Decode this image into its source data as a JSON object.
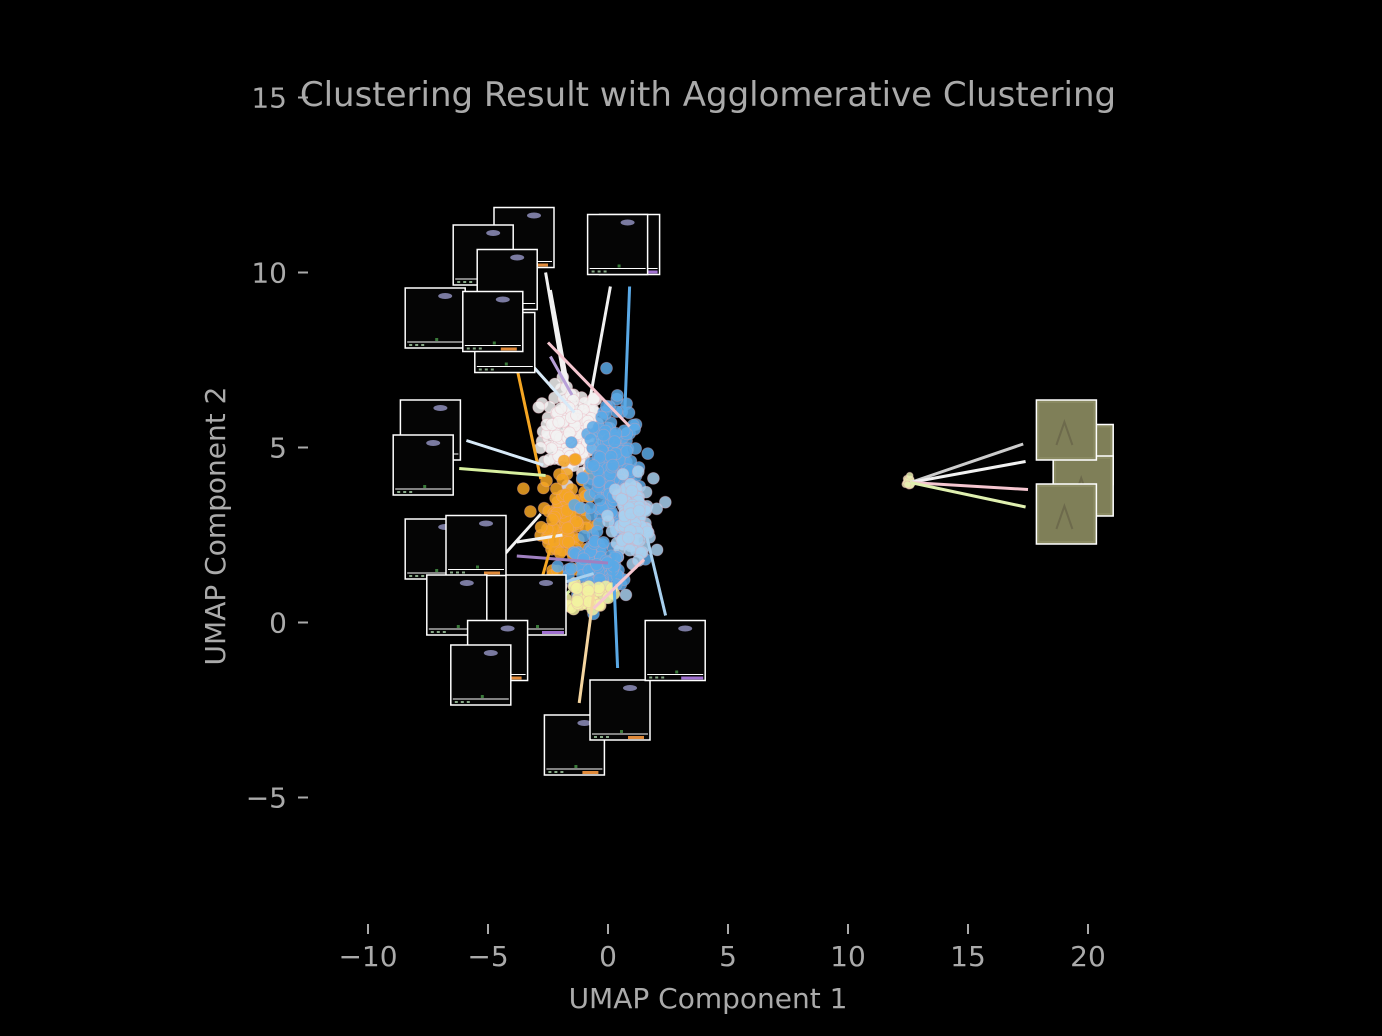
{
  "chart_data": {
    "type": "scatter",
    "title": "Clustering Result with Agglomerative Clustering",
    "xlabel": "UMAP Component 1",
    "ylabel": "UMAP Component 2",
    "xlim": [
      -12,
      20.5
    ],
    "ylim": [
      -8.5,
      15.5
    ],
    "xticks": [
      -10,
      -5,
      0,
      5,
      10,
      15,
      20
    ],
    "xtick_labels": [
      "−10",
      "−5",
      "0",
      "5",
      "10",
      "15",
      "20"
    ],
    "yticks": [
      -5,
      0,
      5,
      10,
      15
    ],
    "ytick_labels": [
      "−5",
      "0",
      "5",
      "10",
      "15"
    ],
    "grid": false,
    "background": "#000000",
    "text_color": "#aaaaaa",
    "clusters": [
      {
        "color": "#f2f2f2",
        "center": [
          -1.5,
          5.5
        ],
        "spread": [
          1.1,
          1.1
        ],
        "count": 160
      },
      {
        "color": "#f5a623",
        "center": [
          -1.8,
          3.0
        ],
        "spread": [
          0.9,
          1.3
        ],
        "count": 110
      },
      {
        "color": "#5aa9e6",
        "center": [
          0.2,
          4.2
        ],
        "spread": [
          1.1,
          1.7
        ],
        "count": 200
      },
      {
        "color": "#a8d0ee",
        "center": [
          1.0,
          3.0
        ],
        "spread": [
          0.8,
          1.0
        ],
        "count": 110
      },
      {
        "color": "#5aa9e6",
        "center": [
          -0.5,
          1.5
        ],
        "spread": [
          1.0,
          0.8
        ],
        "count": 110
      },
      {
        "color": "#f2f2a0",
        "center": [
          -0.8,
          0.8
        ],
        "spread": [
          0.8,
          0.4
        ],
        "count": 40
      },
      {
        "color": "#e6efb0",
        "center": [
          12.5,
          4.0
        ],
        "spread": [
          0.2,
          0.15
        ],
        "count": 25
      }
    ],
    "thumbnails": [
      {
        "pos": [
          -3.5,
          11
        ],
        "tag": "orange"
      },
      {
        "pos": [
          -5.2,
          10.5
        ],
        "tag": "plain"
      },
      {
        "pos": [
          -4.2,
          9.8
        ],
        "tag": "plain"
      },
      {
        "pos": [
          0.9,
          10.8
        ],
        "tag": "purple"
      },
      {
        "pos": [
          0.4,
          10.8
        ],
        "tag": "plain"
      },
      {
        "pos": [
          -7.2,
          8.7
        ],
        "tag": "plain"
      },
      {
        "pos": [
          -4.3,
          8.0
        ],
        "tag": "plain"
      },
      {
        "pos": [
          -4.8,
          8.6
        ],
        "tag": "orange"
      },
      {
        "pos": [
          -7.4,
          5.5
        ],
        "tag": "plain"
      },
      {
        "pos": [
          -7.7,
          4.5
        ],
        "tag": "plain"
      },
      {
        "pos": [
          -7.2,
          2.1
        ],
        "tag": "plain"
      },
      {
        "pos": [
          -5.5,
          2.2
        ],
        "tag": "orange"
      },
      {
        "pos": [
          -3.0,
          0.5
        ],
        "tag": "purple"
      },
      {
        "pos": [
          -6.3,
          0.5
        ],
        "tag": "plain"
      },
      {
        "pos": [
          -4.6,
          -0.8
        ],
        "tag": "orange"
      },
      {
        "pos": [
          -5.3,
          -1.5
        ],
        "tag": "plain"
      },
      {
        "pos": [
          -1.4,
          -3.5
        ],
        "tag": "orange"
      },
      {
        "pos": [
          0.5,
          -2.5
        ],
        "tag": "orange"
      },
      {
        "pos": [
          2.8,
          -0.8
        ],
        "tag": "purple"
      },
      {
        "pos": [
          19.8,
          4.8
        ],
        "tag": "photo"
      },
      {
        "pos": [
          19.8,
          3.9
        ],
        "tag": "photo"
      },
      {
        "pos": [
          19.1,
          5.5
        ],
        "tag": "photo"
      },
      {
        "pos": [
          19.1,
          3.1
        ],
        "tag": "photo"
      }
    ],
    "connectors": [
      {
        "from": [
          -2.6,
          10.0
        ],
        "to": [
          -1.8,
          6.8
        ],
        "color": "#f2f2f2"
      },
      {
        "from": [
          -2.4,
          9.5
        ],
        "to": [
          -1.6,
          6.5
        ],
        "color": "#f2f2f2"
      },
      {
        "from": [
          0.1,
          9.6
        ],
        "to": [
          -0.8,
          6.2
        ],
        "color": "#f2f2f2"
      },
      {
        "from": [
          0.9,
          9.6
        ],
        "to": [
          0.7,
          6.0
        ],
        "color": "#5aa9e6"
      },
      {
        "from": [
          -2.5,
          8.0
        ],
        "to": [
          0.9,
          5.6
        ],
        "color": "#f5c6d0"
      },
      {
        "from": [
          -3.9,
          7.6
        ],
        "to": [
          -2.8,
          4.1
        ],
        "color": "#f5a623"
      },
      {
        "from": [
          -2.4,
          7.6
        ],
        "to": [
          -1.5,
          6.5
        ],
        "color": "#b8a0d8"
      },
      {
        "from": [
          -3.1,
          7.3
        ],
        "to": [
          -1.4,
          6.0
        ],
        "color": "#d8eaf8"
      },
      {
        "from": [
          -5.9,
          5.2
        ],
        "to": [
          -2.7,
          4.5
        ],
        "color": "#d8eaf8"
      },
      {
        "from": [
          -6.2,
          4.4
        ],
        "to": [
          -2.6,
          4.2
        ],
        "color": "#d8f0a0"
      },
      {
        "from": [
          -4.9,
          1.5
        ],
        "to": [
          -2.8,
          3.1
        ],
        "color": "#f2f2f2"
      },
      {
        "from": [
          -3.8,
          2.3
        ],
        "to": [
          -1.9,
          2.5
        ],
        "color": "#f2f2f2"
      },
      {
        "from": [
          -3.8,
          1.9
        ],
        "to": [
          0.0,
          1.7
        ],
        "color": "#a080c0"
      },
      {
        "from": [
          -4.0,
          0.7
        ],
        "to": [
          -0.6,
          1.4
        ],
        "color": "#a8d0ee"
      },
      {
        "from": [
          -3.4,
          -0.3
        ],
        "to": [
          -2.2,
          2.6
        ],
        "color": "#f5a623"
      },
      {
        "from": [
          -3.3,
          -0.2
        ],
        "to": [
          -1.6,
          0.9
        ],
        "color": "#d8f0a0"
      },
      {
        "from": [
          -1.2,
          -2.3
        ],
        "to": [
          -0.6,
          0.8
        ],
        "color": "#f5d6a0"
      },
      {
        "from": [
          0.4,
          -1.3
        ],
        "to": [
          0.2,
          2.0
        ],
        "color": "#5aa9e6"
      },
      {
        "from": [
          2.4,
          0.2
        ],
        "to": [
          1.6,
          2.5
        ],
        "color": "#a8d0ee"
      },
      {
        "from": [
          -0.6,
          0.4
        ],
        "to": [
          1.5,
          1.8
        ],
        "color": "#f5c6d0"
      },
      {
        "from": [
          17.3,
          5.1
        ],
        "to": [
          12.6,
          4.0
        ],
        "color": "#cccccc"
      },
      {
        "from": [
          17.4,
          4.6
        ],
        "to": [
          12.6,
          4.0
        ],
        "color": "#f2f2f2"
      },
      {
        "from": [
          17.5,
          3.8
        ],
        "to": [
          12.6,
          4.0
        ],
        "color": "#f5c6d0"
      },
      {
        "from": [
          17.4,
          3.3
        ],
        "to": [
          12.6,
          4.0
        ],
        "color": "#e0f0b0"
      }
    ]
  }
}
